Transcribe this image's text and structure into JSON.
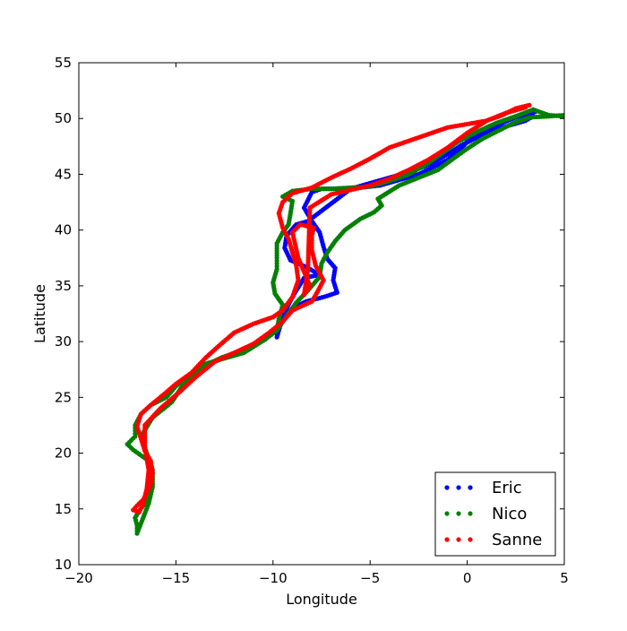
{
  "chart_data": {
    "type": "scatter",
    "title": "",
    "xlabel": "Longitude",
    "ylabel": "Latitude",
    "xlim": [
      -20,
      5
    ],
    "ylim": [
      10,
      55
    ],
    "xticks": [
      "−20",
      "−15",
      "−10",
      "−5",
      "0",
      "5"
    ],
    "xtick_values": [
      -20,
      -15,
      -10,
      -5,
      0,
      5
    ],
    "yticks": [
      "10",
      "15",
      "20",
      "25",
      "30",
      "35",
      "40",
      "45",
      "50",
      "55"
    ],
    "ytick_values": [
      10,
      15,
      20,
      25,
      30,
      35,
      40,
      45,
      50,
      55
    ],
    "grid": false,
    "legend_position": "lower-right",
    "series": [
      {
        "name": "Eric",
        "color": "#0000ff",
        "points": [
          [
            3.5,
            50.6
          ],
          [
            2.5,
            50.1
          ],
          [
            1.5,
            49.4
          ],
          [
            0.5,
            48.5
          ],
          [
            0.0,
            47.9
          ],
          [
            -0.5,
            47.0
          ],
          [
            -1.0,
            46.3
          ],
          [
            -1.8,
            45.6
          ],
          [
            -2.5,
            45.0
          ],
          [
            -3.5,
            44.5
          ],
          [
            -4.5,
            44.0
          ],
          [
            -5.5,
            43.8
          ],
          [
            -6.5,
            43.7
          ],
          [
            -7.5,
            43.7
          ],
          [
            -8.0,
            43.4
          ],
          [
            -8.4,
            42.0
          ],
          [
            -8.0,
            40.8
          ],
          [
            -7.6,
            39.8
          ],
          [
            -7.4,
            38.5
          ],
          [
            -7.2,
            37.4
          ],
          [
            -6.8,
            36.6
          ],
          [
            -6.9,
            35.5
          ],
          [
            -6.7,
            34.4
          ],
          [
            -7.2,
            34.1
          ],
          [
            -7.6,
            33.9
          ],
          [
            -8.3,
            33.6
          ],
          [
            -9.0,
            33.0
          ],
          [
            -9.5,
            32.2
          ],
          [
            -9.8,
            31.0
          ],
          [
            -9.8,
            30.4
          ],
          [
            -9.6,
            31.6
          ],
          [
            -9.3,
            33.0
          ],
          [
            -8.9,
            34.3
          ],
          [
            -8.4,
            35.7
          ],
          [
            -7.6,
            36.0
          ],
          [
            -8.3,
            36.7
          ],
          [
            -9.1,
            37.3
          ],
          [
            -9.4,
            38.4
          ],
          [
            -9.3,
            39.5
          ],
          [
            -8.8,
            40.5
          ],
          [
            -8.2,
            40.8
          ],
          [
            -6.0,
            43.7
          ],
          [
            -4.8,
            44.3
          ],
          [
            -3.8,
            44.8
          ],
          [
            -2.8,
            45.3
          ],
          [
            -1.8,
            46.0
          ],
          [
            -1.0,
            46.8
          ],
          [
            -0.3,
            47.6
          ],
          [
            0.5,
            48.3
          ],
          [
            1.3,
            48.9
          ],
          [
            2.2,
            49.4
          ],
          [
            3.0,
            49.8
          ],
          [
            3.4,
            50.2
          ]
        ]
      },
      {
        "name": "Nico",
        "color": "#008000",
        "points": [
          [
            5.0,
            50.2
          ],
          [
            4.2,
            50.3
          ],
          [
            3.4,
            50.8
          ],
          [
            2.5,
            50.2
          ],
          [
            1.5,
            49.6
          ],
          [
            0.5,
            48.8
          ],
          [
            -0.5,
            47.9
          ],
          [
            -1.2,
            47.0
          ],
          [
            -2.0,
            46.0
          ],
          [
            -3.0,
            45.0
          ],
          [
            -4.0,
            44.4
          ],
          [
            -5.0,
            43.9
          ],
          [
            -6.0,
            43.8
          ],
          [
            -7.0,
            43.7
          ],
          [
            -8.0,
            43.7
          ],
          [
            -9.0,
            43.5
          ],
          [
            -9.5,
            43.0
          ],
          [
            -9.0,
            42.6
          ],
          [
            -9.1,
            41.5
          ],
          [
            -9.2,
            40.5
          ],
          [
            -9.5,
            39.8
          ],
          [
            -9.8,
            38.8
          ],
          [
            -9.8,
            37.5
          ],
          [
            -9.8,
            36.5
          ],
          [
            -10.0,
            35.3
          ],
          [
            -9.9,
            34.3
          ],
          [
            -9.5,
            33.3
          ],
          [
            -9.7,
            32.0
          ],
          [
            -9.8,
            31.0
          ],
          [
            -10.4,
            30.2
          ],
          [
            -11.5,
            29.0
          ],
          [
            -12.5,
            28.5
          ],
          [
            -13.5,
            28.0
          ],
          [
            -14.3,
            27.0
          ],
          [
            -15.0,
            26.0
          ],
          [
            -15.5,
            25.0
          ],
          [
            -16.3,
            24.3
          ],
          [
            -16.8,
            23.5
          ],
          [
            -17.1,
            22.5
          ],
          [
            -17.1,
            21.5
          ],
          [
            -17.5,
            20.8
          ],
          [
            -17.2,
            20.3
          ],
          [
            -16.8,
            19.8
          ],
          [
            -16.3,
            19.2
          ],
          [
            -16.3,
            18.5
          ],
          [
            -16.3,
            17.5
          ],
          [
            -16.4,
            16.5
          ],
          [
            -16.6,
            15.5
          ],
          [
            -16.9,
            14.8
          ],
          [
            -17.1,
            14.2
          ],
          [
            -17.0,
            13.5
          ],
          [
            -17.0,
            12.8
          ],
          [
            -16.8,
            13.7
          ],
          [
            -16.4,
            15.5
          ],
          [
            -16.2,
            17.0
          ],
          [
            -16.2,
            18.5
          ],
          [
            -16.5,
            20.0
          ],
          [
            -16.8,
            21.5
          ],
          [
            -16.2,
            23.2
          ],
          [
            -15.2,
            24.6
          ],
          [
            -14.6,
            26.2
          ],
          [
            -13.6,
            27.8
          ],
          [
            -12.6,
            28.6
          ],
          [
            -11.6,
            29.2
          ],
          [
            -10.8,
            30.0
          ],
          [
            -9.8,
            31.0
          ],
          [
            -9.3,
            32.3
          ],
          [
            -8.8,
            33.5
          ],
          [
            -8.2,
            34.6
          ],
          [
            -7.6,
            35.8
          ],
          [
            -7.5,
            37.0
          ],
          [
            -7.2,
            38.0
          ],
          [
            -6.8,
            39.0
          ],
          [
            -6.3,
            40.0
          ],
          [
            -5.5,
            41.0
          ],
          [
            -4.8,
            41.6
          ],
          [
            -4.4,
            42.2
          ],
          [
            -4.6,
            42.8
          ],
          [
            -3.5,
            44.0
          ],
          [
            -2.5,
            44.7
          ],
          [
            -1.5,
            45.4
          ],
          [
            -0.8,
            46.3
          ],
          [
            0.0,
            47.3
          ],
          [
            0.8,
            48.2
          ],
          [
            1.6,
            48.9
          ],
          [
            2.4,
            49.6
          ],
          [
            3.2,
            50.1
          ],
          [
            4.2,
            50.2
          ],
          [
            5.0,
            50.3
          ]
        ]
      },
      {
        "name": "Sanne",
        "color": "#ff0000",
        "points": [
          [
            3.2,
            51.2
          ],
          [
            2.5,
            50.9
          ],
          [
            1.8,
            50.3
          ],
          [
            1.0,
            49.8
          ],
          [
            0.0,
            49.5
          ],
          [
            -1.0,
            49.2
          ],
          [
            -2.0,
            48.6
          ],
          [
            -3.0,
            48.0
          ],
          [
            -4.0,
            47.4
          ],
          [
            -5.0,
            46.4
          ],
          [
            -6.0,
            45.5
          ],
          [
            -7.0,
            44.7
          ],
          [
            -8.0,
            43.8
          ],
          [
            -9.0,
            43.3
          ],
          [
            -9.5,
            42.5
          ],
          [
            -9.7,
            41.5
          ],
          [
            -9.5,
            40.2
          ],
          [
            -9.2,
            39.2
          ],
          [
            -9.0,
            38.0
          ],
          [
            -8.8,
            36.8
          ],
          [
            -8.7,
            35.5
          ],
          [
            -9.0,
            34.0
          ],
          [
            -9.5,
            32.8
          ],
          [
            -10.0,
            32.2
          ],
          [
            -11.0,
            31.6
          ],
          [
            -12.0,
            30.8
          ],
          [
            -12.8,
            29.6
          ],
          [
            -13.5,
            28.5
          ],
          [
            -14.2,
            27.2
          ],
          [
            -15.0,
            26.2
          ],
          [
            -15.6,
            25.3
          ],
          [
            -16.3,
            24.3
          ],
          [
            -16.8,
            23.5
          ],
          [
            -17.0,
            22.4
          ],
          [
            -16.8,
            21.3
          ],
          [
            -16.6,
            20.2
          ],
          [
            -16.3,
            19.3
          ],
          [
            -16.2,
            18.2
          ],
          [
            -16.3,
            17.2
          ],
          [
            -16.5,
            16.4
          ],
          [
            -16.7,
            15.8
          ],
          [
            -17.0,
            15.3
          ],
          [
            -17.2,
            14.9
          ],
          [
            -16.9,
            14.7
          ],
          [
            -16.7,
            15.4
          ],
          [
            -16.5,
            16.8
          ],
          [
            -16.4,
            18.5
          ],
          [
            -16.6,
            20.5
          ],
          [
            -16.6,
            22.5
          ],
          [
            -15.8,
            24.0
          ],
          [
            -14.8,
            25.5
          ],
          [
            -14.0,
            26.8
          ],
          [
            -13.0,
            28.2
          ],
          [
            -12.0,
            29.0
          ],
          [
            -11.0,
            29.8
          ],
          [
            -10.2,
            30.8
          ],
          [
            -9.5,
            31.8
          ],
          [
            -9.0,
            32.8
          ],
          [
            -8.0,
            33.6
          ],
          [
            -7.7,
            34.5
          ],
          [
            -7.4,
            35.5
          ],
          [
            -7.8,
            36.8
          ],
          [
            -8.0,
            38.2
          ],
          [
            -8.0,
            39.5
          ],
          [
            -7.9,
            40.2
          ],
          [
            -8.6,
            40.5
          ],
          [
            -9.0,
            39.8
          ],
          [
            -8.7,
            37.5
          ],
          [
            -8.1,
            35.0
          ],
          [
            -8.4,
            34.2
          ],
          [
            -8.2,
            36.5
          ],
          [
            -8.1,
            42.0
          ],
          [
            -7.0,
            43.2
          ],
          [
            -6.0,
            43.6
          ],
          [
            -5.0,
            44.0
          ],
          [
            -4.0,
            44.6
          ],
          [
            -3.0,
            45.4
          ],
          [
            -2.0,
            46.3
          ],
          [
            -1.0,
            47.4
          ],
          [
            0.0,
            48.7
          ],
          [
            1.0,
            49.8
          ],
          [
            2.0,
            50.5
          ],
          [
            3.0,
            51.0
          ]
        ]
      }
    ]
  }
}
